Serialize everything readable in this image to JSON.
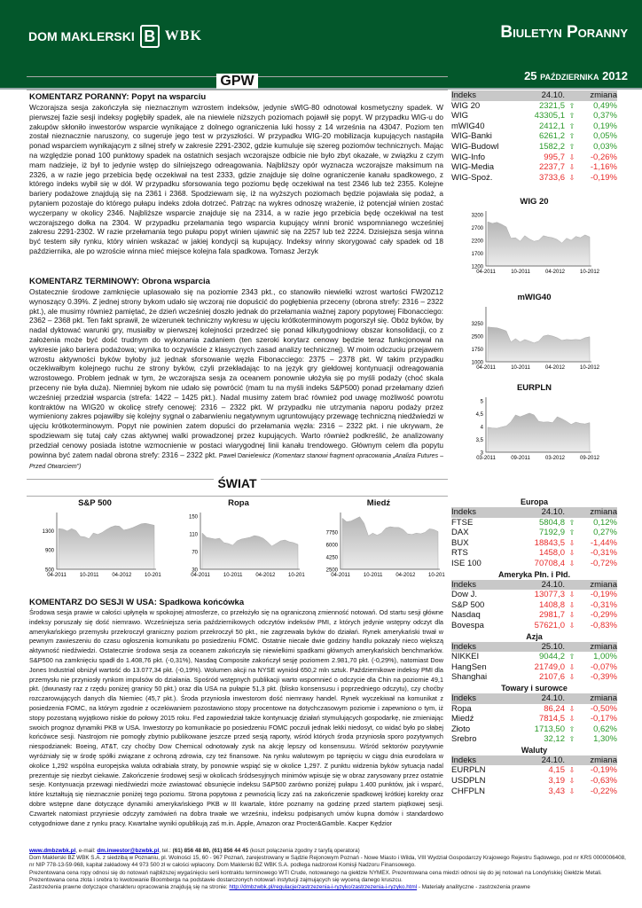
{
  "header": {
    "brand": "DOM MAKLERSKI",
    "brand_mark": "B",
    "brand_wbk": "WBK",
    "title": "Biuletyn Poranny",
    "date": "25 października 2012",
    "colors": {
      "brand_green": "#03572b",
      "up": "#2a9a2a",
      "down": "#e82a2a"
    }
  },
  "sections": {
    "gpw": "GPW",
    "swiat": "ŚWIAT"
  },
  "articles": [
    {
      "title": "KOMENTARZ PORANNY: Popyt na wsparciu",
      "body": "Wczorajsza sesja zakończyła się nieznacznym wzrostem indeksów, jedynie sWIG-80 odnotował kosmetyczny spadek. W pierwszej fazie sesji indeksy pogłębiły spadek, ale na niewiele niższych poziomach pojawił się popyt. W przypadku WIG-u do zakupów skłoniło inwestorów wsparcie wynikające z dolnego ograniczenia luki hossy z 14 września na 43047. Poziom ten został nieznacznie naruszony, co sugeruje jego test w przyszłości. W przypadku WIG-20 mobilizacja kupujących nastąpiła ponad wsparciem wynikającym z silnej strefy w zakresie 2291-2302, gdzie kumuluje się szereg poziomów technicznych. Mając na względzie ponad 100 punktowy spadek na ostatnich sesjach wczorajsze odbicie nie było zbyt okazałe, w związku z czym mam nadzieje, iż był to jedynie wstęp do silniejszego odreagowania. Najbliższy opór wyznacza wczorajsze maksimum na 2326, a w razie jego przebicia będę oczekiwał na test 2333, gdzie znajduje się dolne ograniczenie kanału spadkowego, z którego indeks wybił się w dół. W przypadku sforsowania tego poziomu będę oczekiwał na test 2346 lub też 2355. Kolejne bariery podażowe znajdują się na 2361 i 2368. Spodziewam się, iż na wyższych poziomach będzie pojawiała się podaż, a pytaniem pozostaje do którego pułapu indeks zdoła dotrzeć. Patrząc na wykres odnoszę wrażenie, iż potencjał winien zostać wyczerpany w okolicy 2346. Najbliższe wsparcie znajduje się na 2314, a w razie jego przebicia będę oczekiwał na test wczorajszego dołka na 2304. W przypadku przełamania tego wsparcia kupujący winni bronić wspomnianego wcześniej zakresu 2291-2302. W razie przełamania tego pułapu popyt winien ujawnić się na 2257 lub też 2224. Dzisiejsza sesja winna być testem siły rynku, który winien wskazać w jakiej kondycji są kupujący. Indeksy winny skorygować cały spadek od 18 października, ale po wzroście winna mieć miejsce kolejna fala spadkowa. Tomasz Jerzyk"
    },
    {
      "title": "KOMENTARZ TERMINOWY: Obrona wsparcia",
      "body": "Ostatecznie środowe zamknięcie uplasowało się na poziomie 2343 pkt., co stanowiło niewielki wzrost wartości FW20Z12 wynoszący 0.39%. Z jednej strony bykom udało się wczoraj nie dopuścić do pogłębienia przeceny (obrona strefy: 2316 – 2322 pkt.), ale musimy również pamiętać, że dzień wcześniej doszło jednak do przełamania ważnej zapory popytowej Fibonacciego: 2362 – 2368 pkt. Ten fakt sprawił, że wizerunek techniczny wykresu w ujęciu krótkoterminowym pogorszył się. Obóz byków, by nadal dyktować warunki gry, musiałby w pierwszej kolejności przedrzeć się ponad kilkutygodniowy obszar konsolidacji, co z założenia może być dość trudnym do wykonania zadaniem (ten szeroki korytarz cenowy będzie teraz funkcjonował na wykresie jako bariera podażowa; wynika to oczywiście z klasycznych zasad analizy technicznej). W moim odczuciu przejawem wzrostu aktywności byków byłoby już jednak sforsowanie węzła Fibonacciego: 2375 – 2378 pkt. W takim przypadku oczekiwałbym kolejnego ruchu ze strony byków, czyli przekładając to na język gry giełdowej kontynuacji odreagowania wzrostowego. Problem jednak w tym, że wczorajsza sesja za oceanem ponownie ułożyła się po myśli podaży (choć skala przeceny nie była duża). Niemniej bykom nie udało się powrócić (mam tu na myśli indeks S&P500) ponad przełamany dzień wcześniej przedział wsparcia (strefa: 1422 – 1425 pkt.). Nadal musimy zatem brać również pod uwagę możliwość powrotu kontraktów na WIG20 w okolicę strefy cenowej: 2316 – 2322 pkt. W przypadku nie utrzymania naporu podaży przez wymieniony zakres pojawiłby się kolejny sygnał o zabarwieniu negatywnym ugruntowujący przewagę techniczną niedźwiedzi w ujęciu krótkoterminowym. Popyt nie powinien zatem dopuści do przełamania węzła: 2316 – 2322 pkt. i nie ukrywam, że spodziewam się tutaj cały czas aktywnej walki prowadzonej przez kupujących. Warto również podkreślić, że analizowany przedział cenowy posiada istotne wzmocnienie w postaci wiarygodnej linii kanału trendowego. Głównym celem dla popytu powinna być zatem nadal obrona strefy: 2316 – 2322 pkt.",
      "author": "Paweł Danielewicz",
      "note": "(Komentarz stanowi fragment opracowania „Analiza Futures – Przed Otwarciem”)"
    },
    {
      "title": "KOMENTARZ DO SESJI W USA: Spadkowa końcówka",
      "body": "Środowa sesja prawie w całości upłynęła w spokojnej atmosferze, co przełożyło się na ograniczoną zmienność notowań. Od startu sesji główne indeksy poruszały się dość niemrawo. Wcześniejsza seria październikowych odczytów indeksów PMI, z których jedynie wstępny odczyt dla amerykańskiego przemysłu przekroczył graniczny poziom przekroczył 50 pkt., nie zagrzewała byków do działań. Rynek amerykański trwał w pewnym zawieszeniu do czasu ogłoszenia komunikatu po posiedzeniu FOMC. Ostatnie niecałe dwie godziny handlu pokazały nieco większą aktywność niedźwiedzi. Ostatecznie środowa sesja za oceanem zakończyła się niewielkimi spadkami głównych amerykańskich benchmarków. S&P500 na zamknięciu spadł do 1.408,76 pkt. (-0,31%), Nasdaq Composite zakończył sesję poziomem 2.981,70 pkt. (-0,29%), natomiast Dow Jones Industrial obniżył wartość do 13.077,34 pkt. (-0,19%). Wolumen akcji na NYSE wyniósł 650,2 mln sztuk. Październikowe indeksy PMI dla przemysłu nie przyniosły rynkom impulsów do działania. Spośród wstępnych publikacji warto wspomnieć o odczycie dla Chin na poziomie 49,1 pkt. (dwunasty raz z rzędu poniżej granicy 50 pkt.) oraz dla USA na pułapie 51,3 pkt. (blisko konsensusu i poprzedniego odczytu), czy choćby rozczarowujących danych dla Niemiec (45,7 pkt.). Środa przyniosła inwestorom dość niemrawy handel. Rynek wyczekiwał na komunikat z posiedzenia FOMC, na którym zgodnie z oczekiwaniem pozostawiono stopy procentowe na dotychczasowym poziomie i zapewniono o tym, iż stopy pozostaną wyjątkowo niskie do połowy 2015 roku. Fed zapowiedział także kontynuację działań stymulujących gospodarkę, nie zmieniając swoich prognoz dynamiki PKB w USA. Inwestorzy po komunikacie po posiedzeniu FOMC poczuli jednak lekki niedosyt, co widać było po słabej końcówce sesji. Nastrojom nie pomogły zbytnio publikowane jeszcze przed sesją raporty, wśród których środa przyniosła sporo pozytywnych niespodzianek: Boeing, AT&T, czy choćby Dow Chemical odnotowały zysk na akcję lepszy od konsensusu. Wśród sektorów pozytywnie wyróżniały się w środę spółki związane z ochroną zdrowia, czy też finansowe. Na rynku walutowym po tąpnięciu w ciągu dnia eurodolara w okolice 1,292 wspólna europejska waluta odrabiała straty, by ponownie wspiąć się w okolice 1,297. Z punktu widzenia byków sytuacja nadal prezentuje się niezbyt ciekawie. Zakończenie środowej sesji w okolicach śródsesyjnych minimów wpisuje się w obraz zarysowany przez ostatnie sesje. Kontynuacja przewagi niedźwiedzi może zwiastować obsunięcie indeksu S&P500 zarówno poniżej pułapu 1.400 punktów, jak i wsparć, które kształtują się nieznacznie poniżej tego poziomu. Strona popytowa z pewnością liczy zaś na zakończenie spadkowej krótkiej korekty oraz dobre wstępne dane dotyczące dynamiki amerykańskiego PKB w III kwartale, które poznamy na godzinę przed startem piątkowej sesji. Czwartek natomiast przyniesie odczyty zamówień na dobra trwałe we wrześniu, indeksu podpisanych umów kupna domów i standardowo cotygodniowe dane z rynku pracy. Kwartalne wyniki opublikują zaś m.in. Apple, Amazon oraz Procter&Gamble. Kacper Kędzior"
    }
  ],
  "gpw_table": {
    "headers": [
      "Indeks",
      "24.10.",
      "zmiana"
    ],
    "rows": [
      {
        "name": "WIG 20",
        "value": "2321,5",
        "dir": "up",
        "change": "0,49%"
      },
      {
        "name": "WIG",
        "value": "43305,1",
        "dir": "up",
        "change": "0,37%"
      },
      {
        "name": "mWIG40",
        "value": "2412,1",
        "dir": "up",
        "change": "0,19%"
      },
      {
        "name": "WIG-Banki",
        "value": "6261,2",
        "dir": "up",
        "change": "0,05%"
      },
      {
        "name": "WIG-Budowl",
        "value": "1582,2",
        "dir": "up",
        "change": "0,03%"
      },
      {
        "name": "WIG-Info",
        "value": "995,7",
        "dir": "down",
        "change": "-0,26%"
      },
      {
        "name": "WIG-Media",
        "value": "2237,7",
        "dir": "down",
        "change": "-1,16%"
      },
      {
        "name": "WIG-Spoż.",
        "value": "3733,6",
        "dir": "down",
        "change": "-0,19%"
      }
    ]
  },
  "world_tables": [
    {
      "caption": "Europa",
      "headers": [
        "Indeks",
        "24.10.",
        "zmiana"
      ],
      "rows": [
        {
          "name": "FTSE",
          "value": "5804,8",
          "dir": "up",
          "change": "0,12%"
        },
        {
          "name": "DAX",
          "value": "7192,9",
          "dir": "up",
          "change": "0,27%"
        },
        {
          "name": "BUX",
          "value": "18843,5",
          "dir": "down",
          "change": "-1,44%"
        },
        {
          "name": "RTS",
          "value": "1458,0",
          "dir": "down",
          "change": "-0,31%"
        },
        {
          "name": "ISE 100",
          "value": "70708,4",
          "dir": "down",
          "change": "-0,72%"
        }
      ]
    },
    {
      "caption": "Ameryka Płn. i Płd.",
      "headers": [
        "Indeks",
        "24.10.",
        "zmiana"
      ],
      "rows": [
        {
          "name": "Dow J.",
          "value": "13077,3",
          "dir": "down",
          "change": "-0,19%"
        },
        {
          "name": "S&P 500",
          "value": "1408,8",
          "dir": "down",
          "change": "-0,31%"
        },
        {
          "name": "Nasdaq",
          "value": "2981,7",
          "dir": "down",
          "change": "-0,29%"
        },
        {
          "name": "Bovespa",
          "value": "57621,0",
          "dir": "down",
          "change": "-0,83%"
        }
      ]
    },
    {
      "caption": "Azja",
      "headers": [
        "Indeks",
        "25.10.",
        "zmiana"
      ],
      "rows": [
        {
          "name": "NIKKEI",
          "value": "9044,2",
          "dir": "up",
          "change": "1,00%"
        },
        {
          "name": "HangSen",
          "value": "21749,0",
          "dir": "down",
          "change": "-0,07%"
        },
        {
          "name": "Shanghai",
          "value": "2107,6",
          "dir": "down",
          "change": "-0,39%"
        }
      ]
    },
    {
      "caption": "Towary i surowce",
      "headers": [
        "Indeks",
        "24.10.",
        "zmiana"
      ],
      "rows": [
        {
          "name": "Ropa",
          "value": "86,24",
          "dir": "down",
          "change": "-0,50%"
        },
        {
          "name": "Miedź",
          "value": "7814,5",
          "dir": "down",
          "change": "-0,17%"
        },
        {
          "name": "Złoto",
          "value": "1713,50",
          "dir": "up",
          "change": "0,62%"
        },
        {
          "name": "Srebro",
          "value": "32,12",
          "dir": "up",
          "change": "1,30%"
        }
      ]
    },
    {
      "caption": "Waluty",
      "headers": [
        "Indeks",
        "24.10.",
        "zmiana"
      ],
      "rows": [
        {
          "name": "EURPLN",
          "value": "4,15",
          "dir": "down",
          "change": "-0,19%"
        },
        {
          "name": "USDPLN",
          "value": "3,19",
          "dir": "down",
          "change": "-0,63%"
        },
        {
          "name": "CHFPLN",
          "value": "3,43",
          "dir": "down",
          "change": "-0,22%"
        }
      ]
    }
  ],
  "chart_data": [
    {
      "type": "area",
      "title": "WIG 20",
      "ylim": [
        1200,
        3200
      ],
      "yticks": [
        "3200",
        "2700",
        "2200",
        "1700",
        "1200"
      ],
      "xticks": [
        "04-2011",
        "10-2011",
        "04-2012",
        "10-2012"
      ],
      "values": [
        2920,
        2860,
        2900,
        2820,
        2720,
        2280,
        2300,
        2160,
        2380,
        2250,
        2160,
        2200,
        2380,
        2330,
        2300,
        2230,
        2090,
        2280,
        2200,
        2350,
        2300,
        2410,
        2330
      ]
    },
    {
      "type": "area",
      "title": "mWIG40",
      "ylim": [
        1000,
        4000
      ],
      "yticks": [
        "3250",
        "2500",
        "1750",
        "1000"
      ],
      "xticks": [
        "04-2011",
        "10-2011",
        "04-2012",
        "10-2012"
      ],
      "values": [
        3030,
        3000,
        2980,
        2900,
        2800,
        2150,
        2350,
        2150,
        2300,
        2200,
        2100,
        2200,
        2500,
        2560,
        2500,
        2400,
        2250,
        2300,
        2280,
        2300,
        2280,
        2400,
        2460
      ]
    },
    {
      "type": "area",
      "title": "EURPLN",
      "ylim": [
        3,
        5
      ],
      "yticks": [
        "5",
        "4,5",
        "4",
        "3,5",
        "3"
      ],
      "xticks": [
        "03-2011",
        "09-2011",
        "03-2012",
        "09-2012"
      ],
      "values": [
        3.97,
        3.94,
        3.93,
        3.98,
        4.02,
        4.18,
        4.45,
        4.38,
        4.45,
        4.52,
        4.45,
        4.2,
        4.17,
        4.18,
        4.15,
        4.38,
        4.3,
        4.2,
        4.08,
        4.17,
        4.12,
        4.1,
        4.15
      ]
    },
    {
      "type": "area",
      "title": "S&P 500",
      "ylim": [
        500,
        1600
      ],
      "yticks": [
        "1300",
        "900",
        "500"
      ],
      "xticks": [
        "04-2011",
        "10-2011",
        "04-2012",
        "10-2012"
      ],
      "values": [
        1340,
        1330,
        1290,
        1340,
        1300,
        1180,
        1170,
        1130,
        1250,
        1220,
        1260,
        1320,
        1370,
        1400,
        1390,
        1310,
        1330,
        1360,
        1400,
        1440,
        1450,
        1430,
        1410
      ]
    },
    {
      "type": "area",
      "title": "Ropa",
      "ylim": [
        30,
        150
      ],
      "yticks": [
        "150",
        "110",
        "70",
        "30"
      ],
      "xticks": [
        "04-2011",
        "10-2011",
        "04-2012",
        "10-2012"
      ],
      "values": [
        112,
        102,
        100,
        98,
        100,
        90,
        88,
        84,
        94,
        98,
        100,
        102,
        106,
        104,
        100,
        92,
        82,
        88,
        94,
        96,
        92,
        90,
        86
      ]
    },
    {
      "type": "area",
      "title": "Miedź",
      "ylim": [
        2500,
        10000
      ],
      "yticks": [
        "7750",
        "6000",
        "4250",
        "2500"
      ],
      "xticks": [
        "04-2011",
        "10-2011",
        "04-2012",
        "10-2012"
      ],
      "values": [
        9700,
        9200,
        9300,
        9600,
        9900,
        9000,
        7200,
        7600,
        7300,
        7600,
        8300,
        8500,
        8400,
        8400,
        8100,
        7500,
        7400,
        7600,
        7500,
        7700,
        8200,
        8100,
        7810
      ]
    }
  ],
  "footer": {
    "site": "www.dmbzwbk.pl",
    "email_label": ", e-mail: ",
    "email": "dm.inwestor@bzwbk.pl",
    "tel_label": ", tel.: ",
    "tel": "(61) 856 48 80, (61) 856 44 45",
    "tel_note": "(koszt połączenia zgodny z taryfą operatora)",
    "line2": "Dom Maklerski BZ WBK S.A. z siedzibą w Poznaniu, pl. Wolności 15, 60 - 967 Poznań, zarejestrowany w Sądzie Rejonowym Poznań - Nowe Miasto i Wilda, VIII Wydział Gospodarczy Krajowego Rejestru Sądowego, pod nr KRS 0000006408, nr NIP 778-13-59-968, kapitał zakładowy 44 973 500  zł w całości wpłacony. Dom Maklerski BZ WBK S.A. podlega nadzorowi Komisji Nadzoru Finansowego.",
    "line3": "Prezentowana cena ropy odnosi się do notowań najbliższej wygaśnięciu serii kontraktu terminowego WTI Crude, notowanego na giełdzie NYMEX. Prezentowana cena miedzi odnosi się do jej notowań na Londyńskiej Giełdzie Metali. Prezentowana cena złota i srebra to kwotowanie Bloomberga na podstawie dostarczonych notowań instytucji zajmujących się wyceną danego kruszcu.",
    "line4_pre": "Zastrzeżenia prawne dotyczące charakteru opracowania znajdują się na stronie: ",
    "link": "http://dmbzwbk.pl/regulacje/zastrzezenia-i-ryzyko/zastrzezenia-i-ryzyko.html",
    "line4_post": " - Materiały analityczne - zastrzeżenia prawne"
  }
}
